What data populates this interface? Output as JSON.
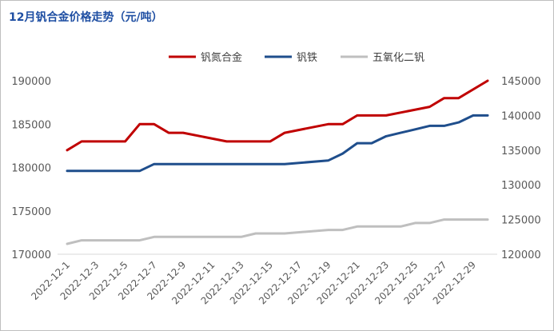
{
  "title": "12月钒合金价格走势（元/吨）",
  "chart_data": {
    "type": "line",
    "title": "12月钒合金价格走势（元/吨）",
    "x": [
      "2022-12-1",
      "2022-12-2",
      "2022-12-3",
      "2022-12-4",
      "2022-12-5",
      "2022-12-6",
      "2022-12-7",
      "2022-12-8",
      "2022-12-9",
      "2022-12-10",
      "2022-12-11",
      "2022-12-12",
      "2022-12-13",
      "2022-12-14",
      "2022-12-15",
      "2022-12-16",
      "2022-12-17",
      "2022-12-18",
      "2022-12-19",
      "2022-12-20",
      "2022-12-21",
      "2022-12-22",
      "2022-12-23",
      "2022-12-24",
      "2022-12-25",
      "2022-12-26",
      "2022-12-27",
      "2022-12-28",
      "2022-12-29",
      "2022-12-30"
    ],
    "xtick_labels": [
      "2022-12-1",
      "2022-12-3",
      "2022-12-5",
      "2022-12-7",
      "2022-12-9",
      "2022-12-11",
      "2022-12-13",
      "2022-12-15",
      "2022-12-17",
      "2022-12-19",
      "2022-12-21",
      "2022-12-23",
      "2022-12-25",
      "2022-12-27",
      "2022-12-29"
    ],
    "ylim_left": [
      170000,
      190000
    ],
    "yticks_left": [
      "170000",
      "175000",
      "180000",
      "185000",
      "190000"
    ],
    "ylim_right": [
      120000,
      145000
    ],
    "yticks_right": [
      "120000",
      "125000",
      "130000",
      "135000",
      "140000",
      "145000"
    ],
    "legend_position": "top",
    "grid": false,
    "series": [
      {
        "name": "钒氮合金",
        "axis": "left",
        "color": "#c00000",
        "values": [
          182000,
          183000,
          183000,
          183000,
          183000,
          185000,
          185000,
          184000,
          184000,
          null,
          null,
          183000,
          183000,
          183000,
          183000,
          184000,
          null,
          null,
          185000,
          185000,
          186000,
          186000,
          186000,
          null,
          null,
          187000,
          188000,
          188000,
          null,
          190000
        ]
      },
      {
        "name": "钒铁",
        "axis": "right",
        "color": "#1f4e8c",
        "values": [
          132000,
          132000,
          132000,
          132000,
          132000,
          132000,
          133000,
          133000,
          133000,
          133000,
          133000,
          133000,
          133000,
          133000,
          133000,
          133000,
          null,
          null,
          133500,
          134500,
          136000,
          136000,
          137000,
          137500,
          138000,
          138500,
          138500,
          139000,
          140000,
          140000
        ]
      },
      {
        "name": "五氧化二钒",
        "axis": "right",
        "color": "#bfbfbf",
        "values": [
          121500,
          122000,
          122000,
          122000,
          122000,
          122000,
          122500,
          122500,
          122500,
          122500,
          122500,
          122500,
          122500,
          123000,
          123000,
          123000,
          null,
          null,
          123500,
          123500,
          124000,
          124000,
          124000,
          124000,
          124500,
          124500,
          125000,
          125000,
          125000,
          125000
        ]
      }
    ]
  }
}
